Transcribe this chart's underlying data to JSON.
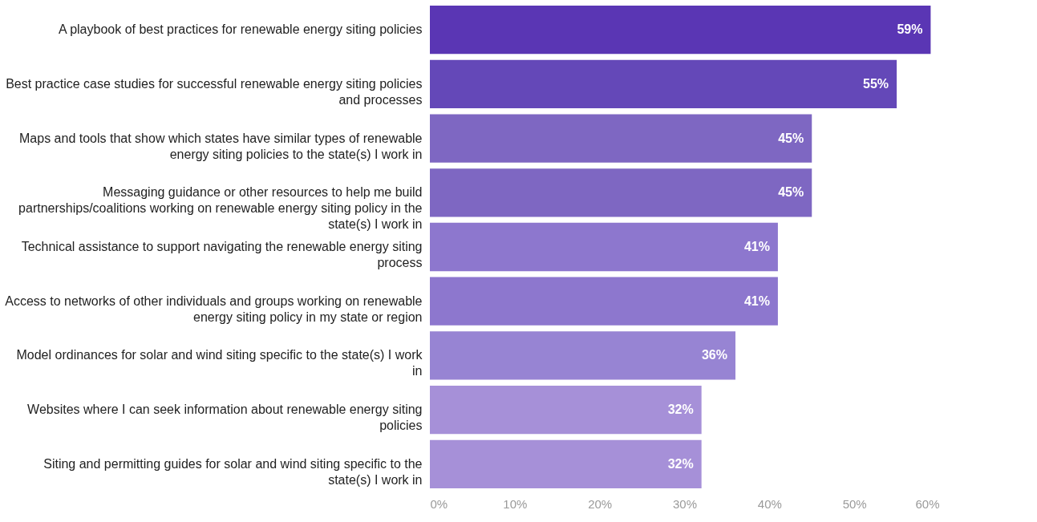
{
  "chart_data": {
    "type": "bar",
    "orientation": "horizontal",
    "categories": [
      "A playbook of best practices for renewable energy siting policies",
      "Best practice case studies for successful renewable energy siting policies and processes",
      "Maps and tools that show which states have similar types of renewable energy siting policies to the state(s) I work in",
      "Messaging guidance or other resources to help me build partnerships/coalitions working on renewable energy siting policy in the state(s) I work in",
      "Technical assistance to support navigating the renewable energy siting process",
      "Access to networks of other individuals and groups working on renewable energy siting policy in my state or region",
      "Model ordinances for solar and wind siting specific to the state(s) I work in",
      "Websites where I can seek information about renewable energy siting policies",
      "Siting and permitting guides for solar and wind siting specific to the state(s) I work in"
    ],
    "values": [
      59,
      55,
      45,
      45,
      41,
      41,
      36,
      32,
      32
    ],
    "value_labels": [
      "59%",
      "55%",
      "45%",
      "45%",
      "41%",
      "41%",
      "36%",
      "32%",
      "32%"
    ],
    "colors": [
      "#5a36b4",
      "#6448b8",
      "#7e67c2",
      "#7e67c2",
      "#8d77ce",
      "#8d77ce",
      "#9784d3",
      "#a690d8",
      "#a690d8"
    ],
    "xlim": [
      0,
      60
    ],
    "xticks": [
      {
        "value": 0,
        "label": "0%"
      },
      {
        "value": 10,
        "label": "10%"
      },
      {
        "value": 20,
        "label": "20%"
      },
      {
        "value": 30,
        "label": "30%"
      },
      {
        "value": 40,
        "label": "40%"
      },
      {
        "value": 50,
        "label": "50%"
      },
      {
        "value": 60,
        "label": "60%"
      }
    ],
    "grid": false
  }
}
